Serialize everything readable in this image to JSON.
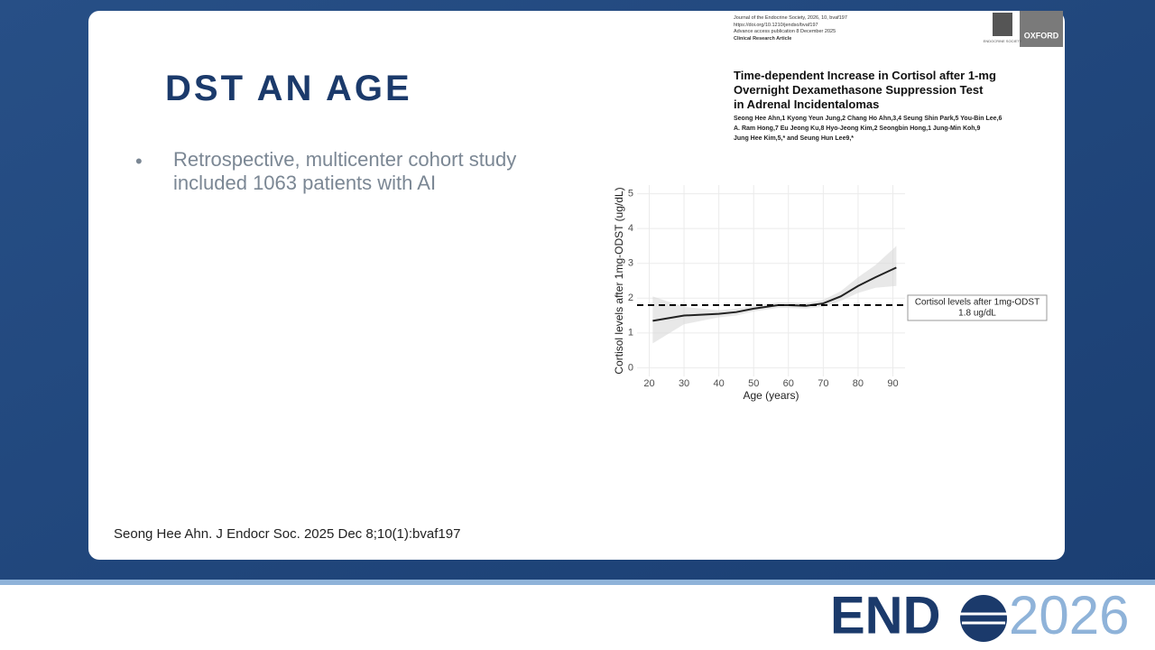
{
  "slide": {
    "title": "DST AN AGE",
    "bullets": [
      "Retrospective, multicenter cohort study included 1063 patients with AI"
    ],
    "citation": "Seong Hee Ahn. J Endocr Soc. 2025 Dec 8;10(1):bvaf197"
  },
  "paper": {
    "journal_lines": [
      "Journal of the Endocrine Society, 2026, 10, bvaf197",
      "https://doi.org/10.1210/jendso/bvaf197",
      "Advance access publication 8 December 2025",
      "Clinical Research Article"
    ],
    "publisher": "OXFORD",
    "society": "ENDOCRINE SOCIETY",
    "title_lines": [
      "Time-dependent Increase in Cortisol after 1-mg",
      "Overnight Dexamethasone Suppression Test",
      "in Adrenal Incidentalomas"
    ],
    "author_lines": [
      "Seong Hee Ahn,1 Kyong Yeun Jung,2 Chang Ho Ahn,3,4 Seung Shin Park,5 You-Bin Lee,6",
      "A. Ram Hong,7 Eu Jeong Ku,8 Hyo-Jeong Kim,2 Seongbin Hong,1 Jung-Min Koh,9",
      "Jung Hee Kim,5,* and Seung Hun Lee9,*"
    ]
  },
  "chart_data": {
    "type": "line",
    "xlabel": "Age (years)",
    "ylabel": "Cortisol levels after 1mg-ODST (ug/dL)",
    "x": [
      21,
      30,
      40,
      45,
      50,
      57,
      60,
      65,
      70,
      75,
      80,
      85,
      91
    ],
    "values": [
      1.35,
      1.5,
      1.55,
      1.6,
      1.7,
      1.8,
      1.8,
      1.78,
      1.85,
      2.05,
      2.35,
      2.6,
      2.88
    ],
    "lower": [
      0.7,
      1.25,
      1.45,
      1.5,
      1.62,
      1.72,
      1.72,
      1.7,
      1.75,
      1.92,
      2.15,
      2.3,
      2.35
    ],
    "upper": [
      2.05,
      1.75,
      1.65,
      1.7,
      1.78,
      1.88,
      1.88,
      1.86,
      1.95,
      2.2,
      2.6,
      2.95,
      3.5
    ],
    "color": "#222222",
    "band_color": "#d9d9d9",
    "hline": {
      "value": 1.8,
      "label_lines": [
        "Cortisol levels after 1mg-ODST",
        "1.8 ug/dL"
      ]
    },
    "xlim": [
      16.5,
      93.5
    ],
    "xticks": [
      20,
      30,
      40,
      50,
      60,
      70,
      80,
      90
    ],
    "ylim": [
      -0.25,
      5.25
    ],
    "yticks": [
      0,
      1,
      2,
      3,
      4,
      5
    ],
    "grid": true
  },
  "footer": {
    "brand": "END",
    "year": "2026"
  }
}
